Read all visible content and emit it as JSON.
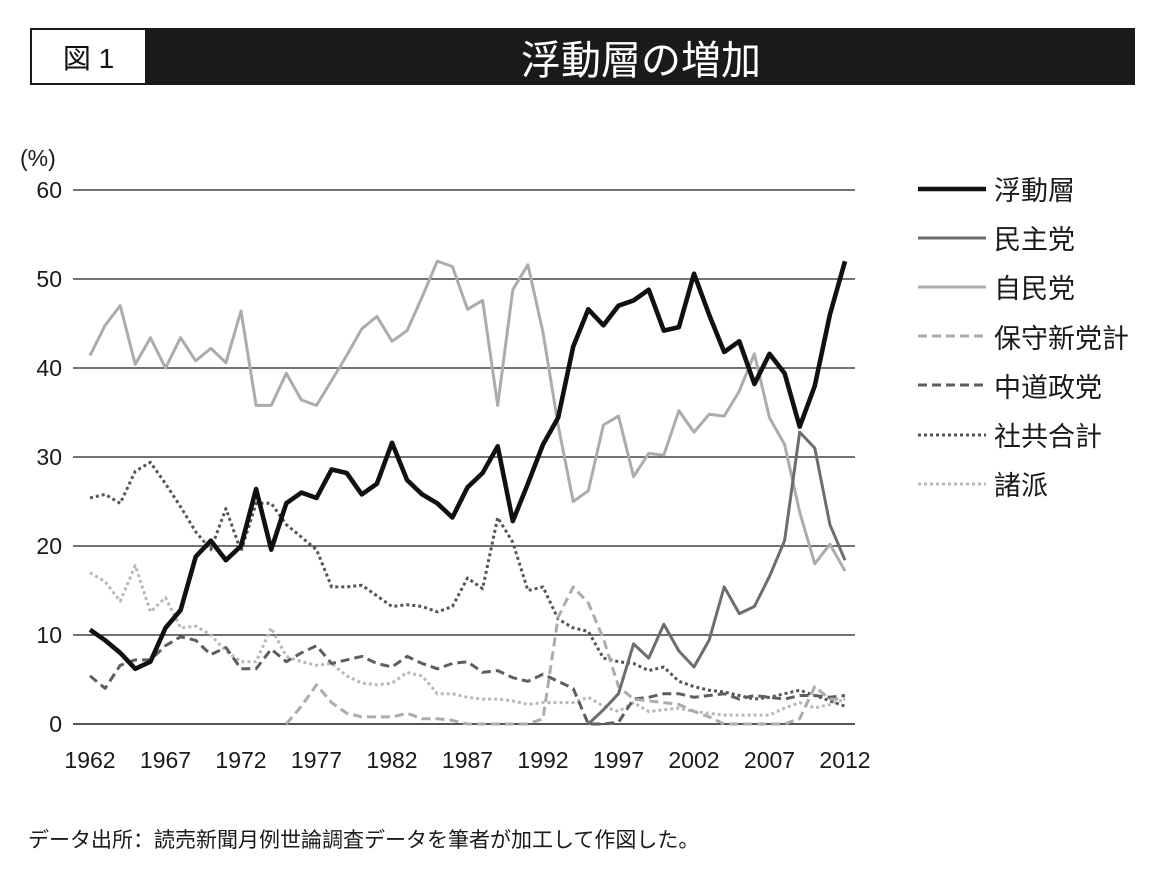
{
  "figure": {
    "label": "図 1"
  },
  "source_note": "データ出所：読売新聞月例世論調査データを筆者が加工して作図した。",
  "chart_data": {
    "type": "line",
    "title": "浮動層の増加",
    "ylabel": "(%)",
    "ylim": [
      0,
      60
    ],
    "yticks": [
      0,
      10,
      20,
      30,
      40,
      50,
      60
    ],
    "xlim": [
      1962,
      2012
    ],
    "xticks": [
      1962,
      1967,
      1972,
      1977,
      1982,
      1987,
      1992,
      1997,
      2002,
      2007,
      2012
    ],
    "grid": "horizontal",
    "legend_position": "right",
    "x": [
      1962,
      1963,
      1964,
      1965,
      1966,
      1967,
      1968,
      1969,
      1970,
      1971,
      1972,
      1973,
      1974,
      1975,
      1976,
      1977,
      1978,
      1979,
      1980,
      1981,
      1982,
      1983,
      1984,
      1985,
      1986,
      1987,
      1988,
      1989,
      1990,
      1991,
      1992,
      1993,
      1994,
      1995,
      1996,
      1997,
      1998,
      1999,
      2000,
      2001,
      2002,
      2003,
      2004,
      2005,
      2006,
      2007,
      2008,
      2009,
      2010,
      2011,
      2012
    ],
    "series": [
      {
        "name": "浮動層",
        "color": "#111111",
        "line_style": "solid",
        "values": [
          10.6,
          9.4,
          8.0,
          6.2,
          7.0,
          10.8,
          12.8,
          18.8,
          20.6,
          18.4,
          20.0,
          26.4,
          19.6,
          24.8,
          26.0,
          25.4,
          28.6,
          28.2,
          25.8,
          27.0,
          31.6,
          27.4,
          25.8,
          24.8,
          23.2,
          26.6,
          28.2,
          31.2,
          22.8,
          27.0,
          31.4,
          34.4,
          42.4,
          46.6,
          44.8,
          47.0,
          47.6,
          48.8,
          44.2,
          44.6,
          50.6,
          46.0,
          41.8,
          43.0,
          38.2,
          41.6,
          39.4,
          33.4,
          38.0,
          46.0,
          52.0
        ]
      },
      {
        "name": "民主党",
        "color": "#6d6d6d",
        "line_style": "solid",
        "values": [
          null,
          null,
          null,
          null,
          null,
          null,
          null,
          null,
          null,
          null,
          null,
          null,
          null,
          null,
          null,
          null,
          null,
          null,
          null,
          null,
          null,
          null,
          null,
          null,
          null,
          null,
          null,
          null,
          null,
          null,
          null,
          null,
          null,
          0.0,
          1.6,
          3.4,
          9.0,
          7.4,
          11.2,
          8.2,
          6.4,
          9.4,
          15.4,
          12.4,
          13.2,
          16.6,
          20.6,
          32.8,
          31.0,
          22.4,
          18.4
        ]
      },
      {
        "name": "自民党",
        "color": "#acacac",
        "line_style": "solid",
        "values": [
          41.4,
          44.8,
          47.0,
          40.4,
          43.4,
          40.0,
          43.4,
          40.8,
          42.2,
          40.6,
          46.4,
          35.8,
          35.8,
          39.4,
          36.4,
          35.8,
          38.6,
          41.4,
          44.4,
          45.8,
          43.0,
          44.2,
          48.0,
          52.0,
          51.4,
          46.6,
          47.6,
          35.8,
          48.8,
          51.6,
          44.0,
          33.6,
          25.0,
          26.2,
          33.6,
          34.6,
          27.8,
          30.4,
          30.2,
          35.2,
          32.8,
          34.8,
          34.6,
          37.4,
          41.6,
          34.4,
          31.4,
          23.8,
          18.0,
          20.2,
          17.2
        ]
      },
      {
        "name": "保守新党計",
        "color": "#acacac",
        "line_style": "dashed",
        "values": [
          null,
          null,
          null,
          null,
          null,
          null,
          null,
          null,
          null,
          null,
          null,
          null,
          null,
          0.0,
          2.0,
          4.4,
          2.4,
          1.2,
          0.8,
          0.8,
          0.8,
          1.2,
          0.6,
          0.6,
          0.4,
          0.0,
          0.0,
          0.0,
          0.0,
          0.0,
          0.6,
          12.0,
          15.4,
          13.6,
          9.6,
          4.2,
          2.8,
          2.6,
          2.4,
          2.2,
          1.4,
          0.8,
          0.0,
          0.0,
          0.0,
          0.0,
          0.0,
          0.6,
          4.2,
          2.8,
          2.8
        ]
      },
      {
        "name": "中道政党",
        "color": "#5e5e5e",
        "line_style": "dashed",
        "values": [
          5.4,
          4.0,
          6.6,
          7.2,
          7.2,
          8.8,
          9.8,
          9.4,
          7.8,
          8.6,
          6.2,
          6.2,
          8.4,
          7.0,
          8.0,
          8.8,
          6.8,
          7.2,
          7.6,
          6.8,
          6.4,
          7.6,
          6.8,
          6.2,
          6.8,
          7.0,
          5.8,
          6.0,
          5.2,
          4.8,
          5.6,
          4.8,
          4.0,
          0.0,
          0.0,
          0.2,
          2.8,
          3.0,
          3.4,
          3.4,
          3.0,
          3.2,
          3.4,
          2.8,
          3.2,
          3.0,
          2.8,
          3.2,
          3.2,
          3.0,
          3.2
        ]
      },
      {
        "name": "社共合計",
        "color": "#555555",
        "line_style": "dotted",
        "values": [
          25.4,
          25.8,
          24.8,
          28.4,
          29.4,
          27.0,
          24.4,
          21.6,
          19.6,
          24.2,
          19.4,
          24.8,
          24.8,
          22.4,
          21.0,
          19.6,
          15.4,
          15.4,
          15.6,
          14.4,
          13.2,
          13.4,
          13.2,
          12.6,
          13.2,
          16.4,
          15.2,
          23.2,
          20.4,
          15.0,
          15.4,
          11.8,
          10.8,
          10.4,
          7.4,
          7.0,
          6.8,
          6.0,
          6.4,
          4.8,
          4.2,
          3.8,
          3.6,
          3.2,
          2.8,
          3.0,
          3.4,
          3.8,
          3.2,
          2.6,
          2.0
        ]
      },
      {
        "name": "諸派",
        "color": "#b8b8b8",
        "line_style": "dotted",
        "values": [
          17.0,
          16.0,
          13.8,
          17.8,
          12.6,
          14.2,
          10.8,
          11.0,
          10.0,
          8.2,
          7.0,
          7.0,
          10.8,
          7.6,
          7.0,
          6.6,
          6.8,
          5.4,
          4.6,
          4.4,
          4.6,
          5.8,
          5.4,
          3.4,
          3.4,
          3.0,
          2.8,
          2.8,
          2.6,
          2.2,
          2.4,
          2.4,
          2.4,
          3.0,
          2.0,
          1.4,
          2.4,
          1.4,
          1.6,
          1.8,
          1.4,
          1.2,
          1.0,
          1.0,
          1.0,
          1.0,
          1.8,
          2.4,
          1.8,
          2.2,
          2.8
        ]
      }
    ]
  }
}
